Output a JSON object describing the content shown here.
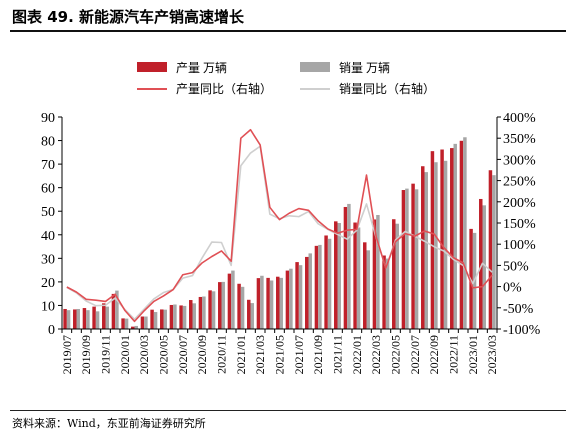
{
  "header": {
    "title": "图表 49. 新能源汽车产销高速增长"
  },
  "footer": {
    "source": "资料来源：Wind，东亚前海证券研究所"
  },
  "colors": {
    "production_bar": "#c0202a",
    "sales_bar": "#a6a6a6",
    "production_line": "#e05055",
    "sales_line": "#cfcfcf"
  },
  "chart_data": {
    "type": "bar",
    "categories": [
      "2019/07",
      "2019/08",
      "2019/09",
      "2019/10",
      "2019/11",
      "2019/12",
      "2020/01",
      "2020/02",
      "2020/03",
      "2020/04",
      "2020/05",
      "2020/06",
      "2020/07",
      "2020/08",
      "2020/09",
      "2020/10",
      "2020/11",
      "2020/12",
      "2021/01",
      "2021/02",
      "2021/03",
      "2021/04",
      "2021/05",
      "2021/06",
      "2021/07",
      "2021/08",
      "2021/09",
      "2021/10",
      "2021/11",
      "2021/12",
      "2022/01",
      "2022/02",
      "2022/03",
      "2022/04",
      "2022/05",
      "2022/06",
      "2022/07",
      "2022/08",
      "2022/09",
      "2022/10",
      "2022/11",
      "2022/12",
      "2023/01",
      "2023/02",
      "2023/03"
    ],
    "tick_labels": [
      "2019/07",
      "2019/09",
      "2019/11",
      "2020/01",
      "2020/03",
      "2020/05",
      "2020/07",
      "2020/09",
      "2020/11",
      "2021/01",
      "2021/03",
      "2021/05",
      "2021/07",
      "2021/09",
      "2021/11",
      "2022/01",
      "2022/03",
      "2022/05",
      "2022/07",
      "2022/09",
      "2022/11",
      "2023/01",
      "2023/03"
    ],
    "series": [
      {
        "name": "产量 万辆",
        "kind": "bar",
        "axis": "left",
        "values": [
          8.5,
          8.3,
          8.9,
          9.5,
          10.9,
          14.9,
          4.5,
          1.0,
          5.3,
          8.2,
          8.3,
          10.2,
          10.0,
          12.3,
          13.6,
          16.4,
          19.9,
          23.5,
          19.2,
          12.4,
          21.6,
          21.7,
          22.2,
          24.8,
          28.4,
          30.6,
          35.3,
          39.7,
          45.7,
          51.8,
          45.2,
          36.8,
          46.5,
          31.2,
          46.6,
          59.0,
          61.7,
          69.1,
          75.5,
          76.2,
          76.8,
          79.9,
          42.5,
          55.2,
          67.4
        ]
      },
      {
        "name": "销量 万辆",
        "kind": "bar",
        "axis": "left",
        "values": [
          8.0,
          8.5,
          8.0,
          7.5,
          9.5,
          16.3,
          4.4,
          1.3,
          5.3,
          7.2,
          8.2,
          10.4,
          9.8,
          10.9,
          13.8,
          16.0,
          20.0,
          24.8,
          17.9,
          11.0,
          22.6,
          20.6,
          21.7,
          25.6,
          27.1,
          32.1,
          35.7,
          38.3,
          45.0,
          53.1,
          43.1,
          33.4,
          48.4,
          29.9,
          44.7,
          59.6,
          59.3,
          66.6,
          70.8,
          71.4,
          78.6,
          81.4,
          40.8,
          52.5,
          65.3
        ]
      },
      {
        "name": "产量同比（右轴）",
        "kind": "line",
        "axis": "right",
        "values": [
          -1,
          -13,
          -30,
          -32,
          -35,
          -18,
          -56,
          -82,
          -57,
          -35,
          -22,
          -7,
          28,
          33,
          56,
          71,
          84,
          60,
          350,
          370,
          334,
          187,
          158,
          173,
          184,
          180,
          155,
          136,
          126,
          133,
          135,
          263,
          117,
          44,
          106,
          125,
          119,
          131,
          124,
          92,
          68,
          56,
          -3,
          0,
          27
        ]
      },
      {
        "name": "销量同比（右轴）",
        "kind": "line",
        "axis": "right",
        "values": [
          -2,
          -15,
          -34,
          -45,
          -44,
          -27,
          -54,
          -77,
          -53,
          -29,
          -14,
          -7,
          20,
          26,
          68,
          105,
          104,
          50,
          285,
          315,
          331,
          171,
          160,
          167,
          165,
          177,
          148,
          135,
          123,
          112,
          133,
          195,
          115,
          44,
          110,
          130,
          119,
          107,
          94,
          84,
          64,
          50,
          7,
          55,
          34
        ]
      }
    ],
    "xlabel": "",
    "ylabel": "",
    "ylim": [
      0,
      90
    ],
    "y_ticks": [
      0,
      10,
      20,
      30,
      40,
      50,
      60,
      70,
      80,
      90
    ],
    "y2lim": [
      -100,
      400
    ],
    "y2_ticks": [
      "-100%",
      "-50%",
      "0%",
      "50%",
      "100%",
      "150%",
      "200%",
      "250%",
      "300%",
      "350%",
      "400%"
    ],
    "legend_position": "top",
    "grid": false
  }
}
